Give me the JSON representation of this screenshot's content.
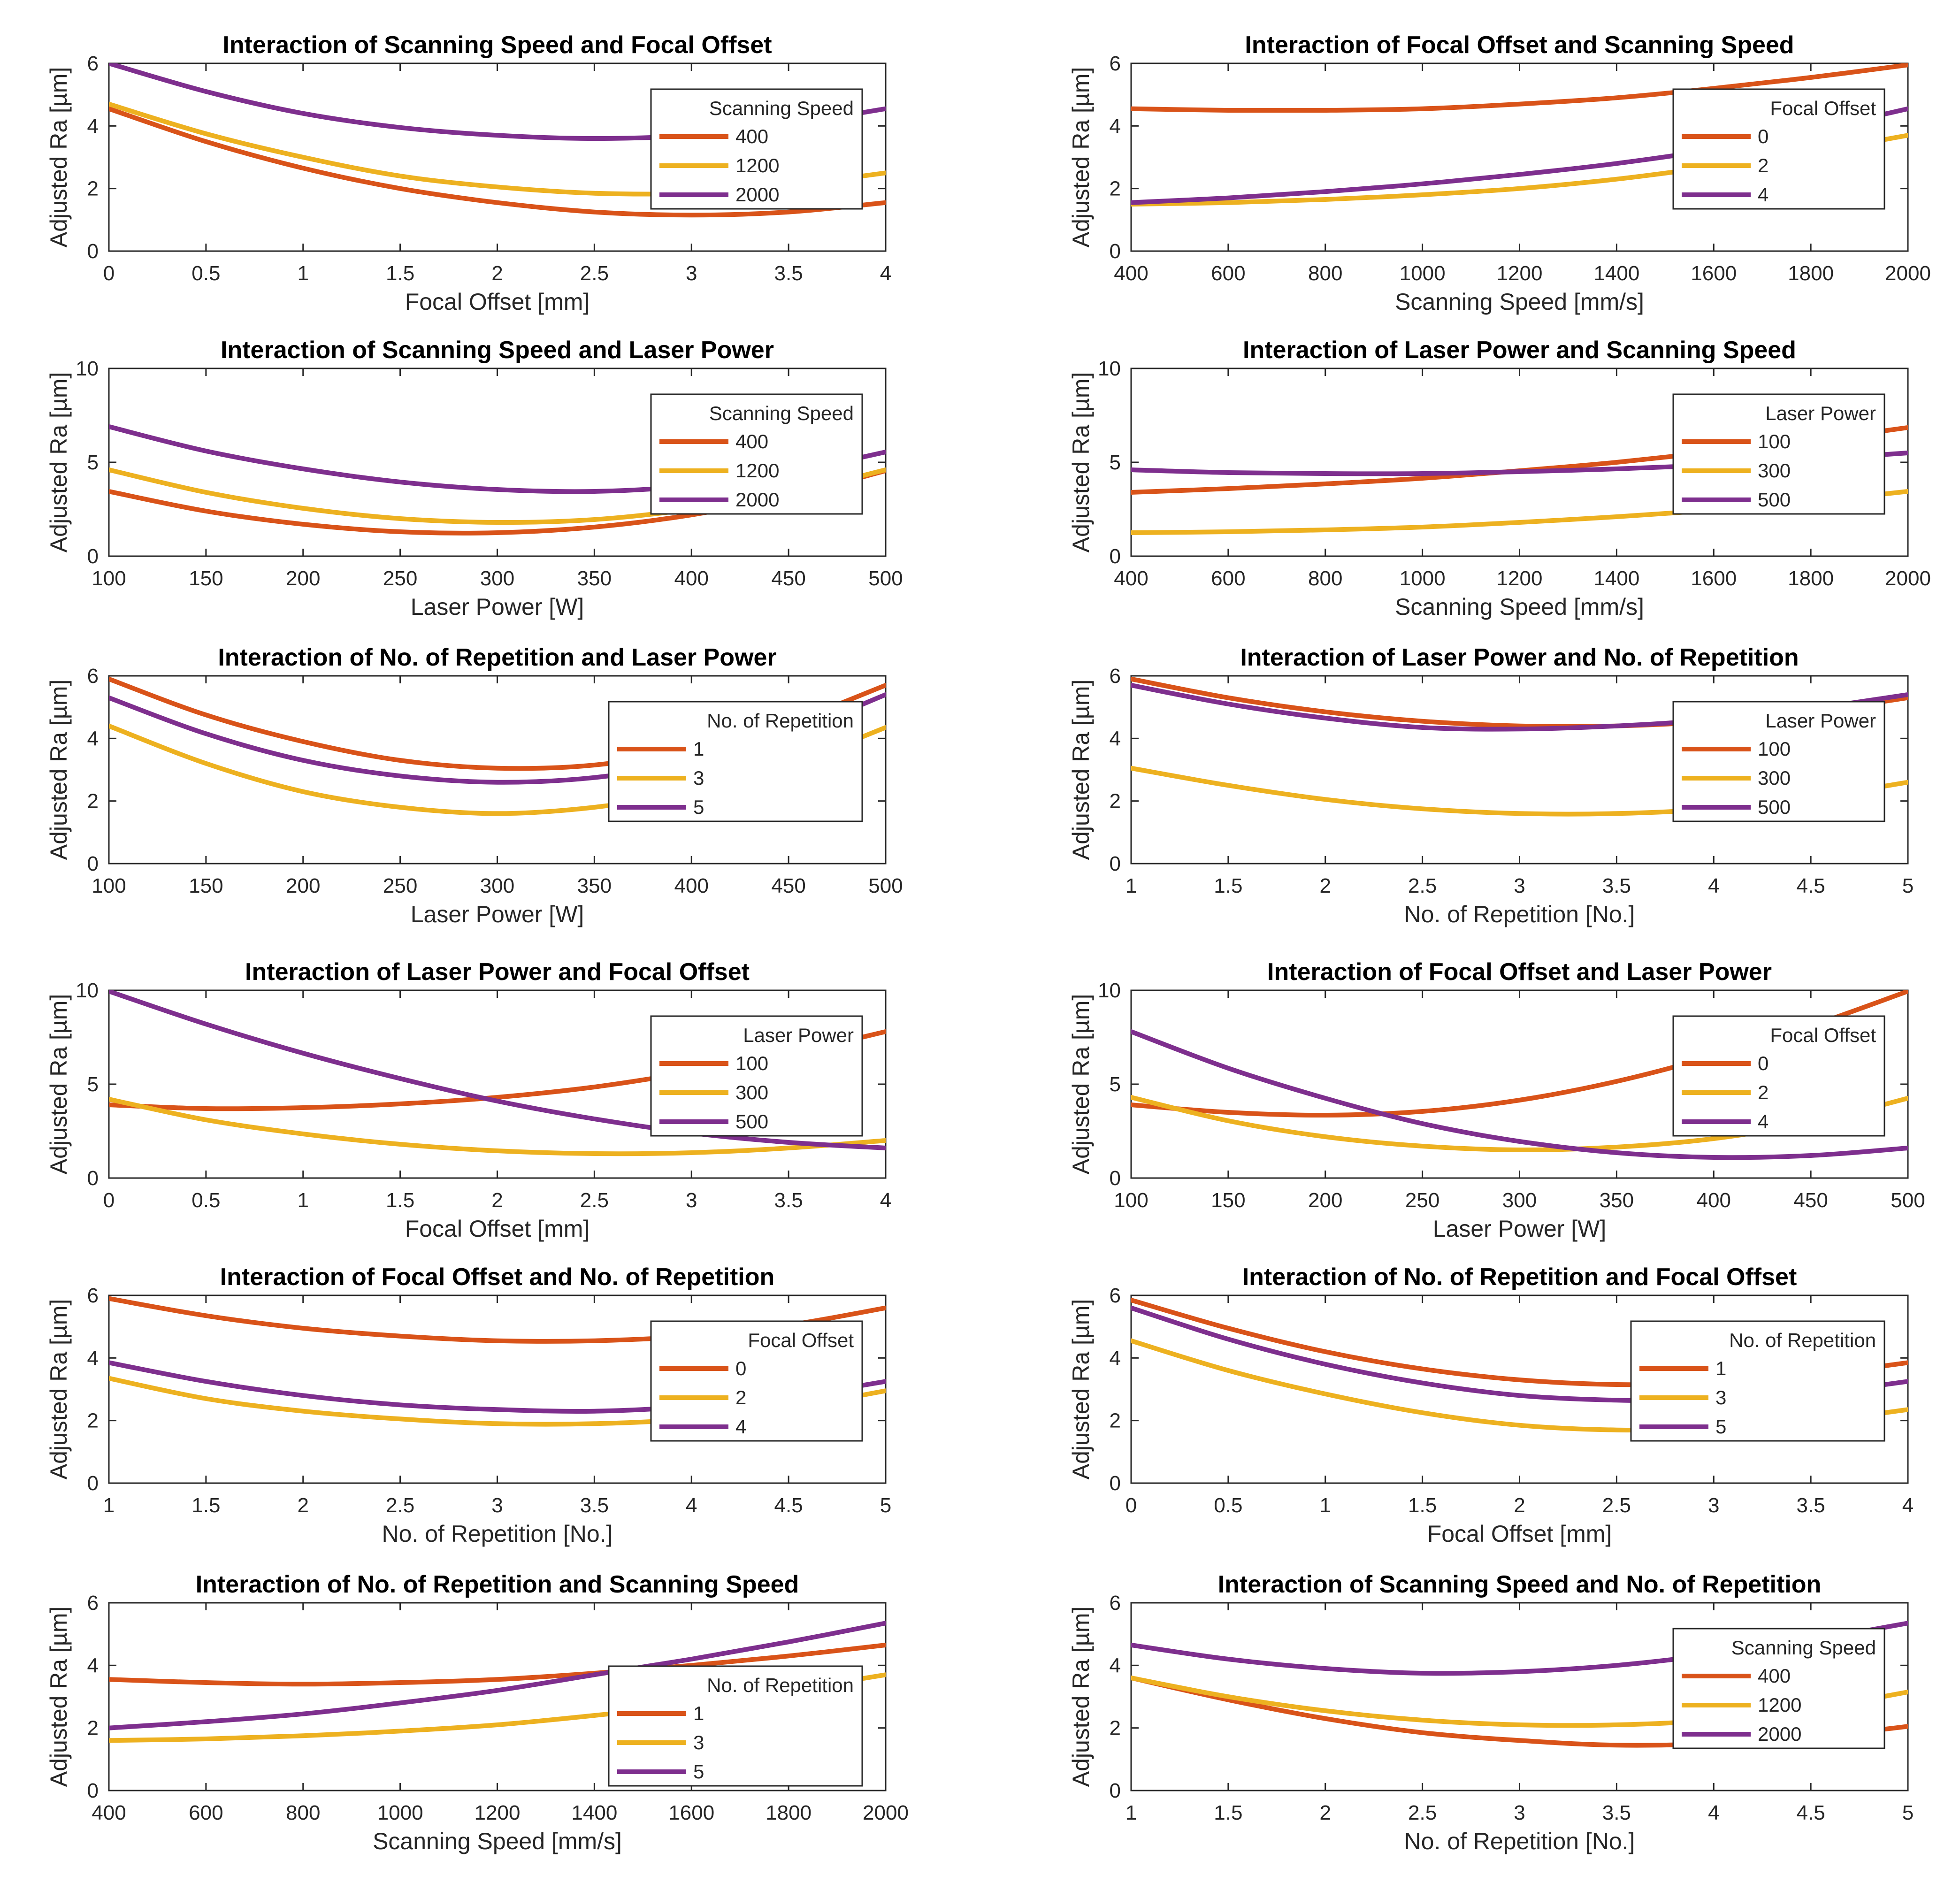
{
  "figure": {
    "ylabel": "Adjusted Ra [µm]",
    "colors": {
      "c1": "#D95319",
      "c2": "#EDB120",
      "c3": "#7E2F8E",
      "axis": "#262626",
      "frame": "#262626"
    }
  },
  "chart_data": [
    {
      "type": "line",
      "title": "Interaction of Scanning Speed and Focal Offset",
      "xlabel": "Focal Offset [mm]",
      "ylabel": "Adjusted Ra [µm]",
      "xlim": [
        0,
        4
      ],
      "ylim": [
        0,
        6
      ],
      "xticks": [
        0,
        0.5,
        1,
        1.5,
        2,
        2.5,
        3,
        3.5,
        4
      ],
      "yticks": [
        0,
        2,
        4,
        6
      ],
      "legend": {
        "title": "Scanning Speed",
        "position": "top-right"
      },
      "x": [
        0,
        0.5,
        1,
        1.5,
        2,
        2.5,
        3,
        3.5,
        4
      ],
      "series": [
        {
          "name": "400",
          "values": [
            4.55,
            3.5,
            2.65,
            2.0,
            1.55,
            1.25,
            1.15,
            1.25,
            1.55
          ]
        },
        {
          "name": "1200",
          "values": [
            4.7,
            3.75,
            3.0,
            2.4,
            2.05,
            1.85,
            1.85,
            2.1,
            2.5
          ]
        },
        {
          "name": "2000",
          "values": [
            6.0,
            5.1,
            4.4,
            3.95,
            3.7,
            3.6,
            3.7,
            4.05,
            4.55
          ]
        }
      ]
    },
    {
      "type": "line",
      "title": "Interaction of Focal Offset and Scanning Speed",
      "xlabel": "Scanning Speed [mm/s]",
      "ylabel": "Adjusted Ra [µm]",
      "xlim": [
        400,
        2000
      ],
      "ylim": [
        0,
        6
      ],
      "xticks": [
        400,
        600,
        800,
        1000,
        1200,
        1400,
        1600,
        1800,
        2000
      ],
      "yticks": [
        0,
        2,
        4,
        6
      ],
      "legend": {
        "title": "Focal Offset",
        "position": "top-right"
      },
      "x": [
        400,
        600,
        800,
        1000,
        1200,
        1400,
        1600,
        1800,
        2000
      ],
      "series": [
        {
          "name": "0",
          "values": [
            4.55,
            4.5,
            4.5,
            4.55,
            4.7,
            4.9,
            5.2,
            5.55,
            5.95
          ]
        },
        {
          "name": "2",
          "values": [
            1.5,
            1.55,
            1.65,
            1.8,
            2.0,
            2.3,
            2.7,
            3.15,
            3.7
          ]
        },
        {
          "name": "4",
          "values": [
            1.55,
            1.7,
            1.9,
            2.15,
            2.45,
            2.8,
            3.25,
            3.85,
            4.55
          ]
        }
      ]
    },
    {
      "type": "line",
      "title": "Interaction of Scanning Speed and Laser Power",
      "xlabel": "Laser Power [W]",
      "ylabel": "Adjusted Ra [µm]",
      "xlim": [
        100,
        500
      ],
      "ylim": [
        0,
        10
      ],
      "xticks": [
        100,
        150,
        200,
        250,
        300,
        350,
        400,
        450,
        500
      ],
      "yticks": [
        0,
        5,
        10
      ],
      "legend": {
        "title": "Scanning Speed",
        "position": "top-right"
      },
      "x": [
        100,
        150,
        200,
        250,
        300,
        350,
        400,
        450,
        500
      ],
      "series": [
        {
          "name": "400",
          "values": [
            3.45,
            2.4,
            1.7,
            1.3,
            1.25,
            1.55,
            2.2,
            3.2,
            4.55
          ]
        },
        {
          "name": "1200",
          "values": [
            4.6,
            3.4,
            2.55,
            2.0,
            1.8,
            1.95,
            2.5,
            3.35,
            4.6
          ]
        },
        {
          "name": "2000",
          "values": [
            6.9,
            5.6,
            4.65,
            3.95,
            3.55,
            3.45,
            3.75,
            4.45,
            5.55
          ]
        }
      ]
    },
    {
      "type": "line",
      "title": "Interaction of Laser Power and Scanning Speed",
      "xlabel": "Scanning Speed [mm/s]",
      "ylabel": "Adjusted Ra [µm]",
      "xlim": [
        400,
        2000
      ],
      "ylim": [
        0,
        10
      ],
      "xticks": [
        400,
        600,
        800,
        1000,
        1200,
        1400,
        1600,
        1800,
        2000
      ],
      "yticks": [
        0,
        5,
        10
      ],
      "legend": {
        "title": "Laser Power",
        "position": "top-right"
      },
      "x": [
        400,
        600,
        800,
        1000,
        1200,
        1400,
        1600,
        1800,
        2000
      ],
      "series": [
        {
          "name": "100",
          "values": [
            3.4,
            3.6,
            3.85,
            4.15,
            4.55,
            5.0,
            5.55,
            6.15,
            6.85
          ]
        },
        {
          "name": "300",
          "values": [
            1.25,
            1.3,
            1.4,
            1.55,
            1.8,
            2.1,
            2.45,
            2.9,
            3.45
          ]
        },
        {
          "name": "500",
          "values": [
            4.6,
            4.45,
            4.4,
            4.4,
            4.5,
            4.65,
            4.85,
            5.15,
            5.5
          ]
        }
      ]
    },
    {
      "type": "line",
      "title": "Interaction of No. of Repetition and Laser Power",
      "xlabel": "Laser Power [W]",
      "ylabel": "Adjusted Ra [µm]",
      "xlim": [
        100,
        500
      ],
      "ylim": [
        0,
        6
      ],
      "xticks": [
        100,
        150,
        200,
        250,
        300,
        350,
        400,
        450,
        500
      ],
      "yticks": [
        0,
        2,
        4,
        6
      ],
      "legend": {
        "title": "No. of Repetition",
        "position": "top-right"
      },
      "x": [
        100,
        150,
        200,
        250,
        300,
        350,
        400,
        450,
        500
      ],
      "series": [
        {
          "name": "1",
          "values": [
            5.9,
            4.75,
            3.9,
            3.3,
            3.05,
            3.15,
            3.65,
            4.5,
            5.7
          ]
        },
        {
          "name": "3",
          "values": [
            4.4,
            3.2,
            2.3,
            1.8,
            1.6,
            1.8,
            2.3,
            3.15,
            4.35
          ]
        },
        {
          "name": "5",
          "values": [
            5.3,
            4.15,
            3.3,
            2.8,
            2.6,
            2.75,
            3.25,
            4.15,
            5.4
          ]
        }
      ]
    },
    {
      "type": "line",
      "title": "Interaction of Laser Power and No. of Repetition",
      "xlabel": "No. of Repetition [No.]",
      "ylabel": "Adjusted Ra [µm]",
      "xlim": [
        1,
        5
      ],
      "ylim": [
        0,
        6
      ],
      "xticks": [
        1,
        1.5,
        2,
        2.5,
        3,
        3.5,
        4,
        4.5,
        5
      ],
      "yticks": [
        0,
        2,
        4,
        6
      ],
      "legend": {
        "title": "Laser Power",
        "position": "top-right"
      },
      "x": [
        1,
        1.5,
        2,
        2.5,
        3,
        3.5,
        4,
        4.5,
        5
      ],
      "series": [
        {
          "name": "100",
          "values": [
            5.9,
            5.3,
            4.85,
            4.55,
            4.4,
            4.4,
            4.55,
            4.85,
            5.3
          ]
        },
        {
          "name": "300",
          "values": [
            3.05,
            2.5,
            2.05,
            1.75,
            1.6,
            1.6,
            1.75,
            2.1,
            2.6
          ]
        },
        {
          "name": "500",
          "values": [
            5.7,
            5.1,
            4.65,
            4.35,
            4.3,
            4.4,
            4.6,
            4.95,
            5.4
          ]
        }
      ]
    },
    {
      "type": "line",
      "title": "Interaction of Laser Power and Focal Offset",
      "xlabel": "Focal Offset [mm]",
      "ylabel": "Adjusted Ra [µm]",
      "xlim": [
        0,
        4
      ],
      "ylim": [
        0,
        10
      ],
      "xticks": [
        0,
        0.5,
        1,
        1.5,
        2,
        2.5,
        3,
        3.5,
        4
      ],
      "yticks": [
        0,
        5,
        10
      ],
      "legend": {
        "title": "Laser Power",
        "position": "top-right"
      },
      "x": [
        0,
        0.5,
        1,
        1.5,
        2,
        2.5,
        3,
        3.5,
        4
      ],
      "series": [
        {
          "name": "100",
          "values": [
            3.9,
            3.7,
            3.75,
            3.95,
            4.3,
            4.85,
            5.65,
            6.6,
            7.8
          ]
        },
        {
          "name": "300",
          "values": [
            4.2,
            3.1,
            2.35,
            1.8,
            1.45,
            1.3,
            1.35,
            1.6,
            2.0
          ]
        },
        {
          "name": "500",
          "values": [
            9.95,
            8.2,
            6.65,
            5.3,
            4.1,
            3.15,
            2.4,
            1.9,
            1.6
          ]
        }
      ]
    },
    {
      "type": "line",
      "title": "Interaction of Focal Offset and Laser Power",
      "xlabel": "Laser Power [W]",
      "ylabel": "Adjusted Ra [µm]",
      "xlim": [
        100,
        500
      ],
      "ylim": [
        0,
        10
      ],
      "xticks": [
        100,
        150,
        200,
        250,
        300,
        350,
        400,
        450,
        500
      ],
      "yticks": [
        0,
        5,
        10
      ],
      "legend": {
        "title": "Focal Offset",
        "position": "top-right"
      },
      "x": [
        100,
        150,
        200,
        250,
        300,
        350,
        400,
        450,
        500
      ],
      "series": [
        {
          "name": "0",
          "values": [
            3.9,
            3.5,
            3.35,
            3.55,
            4.15,
            5.15,
            6.5,
            8.1,
            9.95
          ]
        },
        {
          "name": "2",
          "values": [
            4.3,
            3.05,
            2.2,
            1.7,
            1.5,
            1.65,
            2.1,
            2.95,
            4.25
          ]
        },
        {
          "name": "4",
          "values": [
            7.8,
            5.85,
            4.25,
            2.9,
            1.95,
            1.35,
            1.1,
            1.2,
            1.6
          ]
        }
      ]
    },
    {
      "type": "line",
      "title": "Interaction of Focal Offset and No. of Repetition",
      "xlabel": "No. of Repetition [No.]",
      "ylabel": "Adjusted Ra [µm]",
      "xlim": [
        1,
        5
      ],
      "ylim": [
        0,
        6
      ],
      "xticks": [
        1,
        1.5,
        2,
        2.5,
        3,
        3.5,
        4,
        4.5,
        5
      ],
      "yticks": [
        0,
        2,
        4,
        6
      ],
      "legend": {
        "title": "Focal Offset",
        "position": "top-right"
      },
      "x": [
        1,
        1.5,
        2,
        2.5,
        3,
        3.5,
        4,
        4.5,
        5
      ],
      "series": [
        {
          "name": "0",
          "values": [
            5.9,
            5.35,
            4.95,
            4.7,
            4.55,
            4.55,
            4.7,
            5.05,
            5.6
          ]
        },
        {
          "name": "2",
          "values": [
            3.35,
            2.7,
            2.3,
            2.05,
            1.9,
            1.9,
            2.05,
            2.4,
            2.95
          ]
        },
        {
          "name": "4",
          "values": [
            3.85,
            3.25,
            2.8,
            2.5,
            2.35,
            2.3,
            2.45,
            2.75,
            3.25
          ]
        }
      ]
    },
    {
      "type": "line",
      "title": "Interaction of No. of Repetition and Focal Offset",
      "xlabel": "Focal Offset [mm]",
      "ylabel": "Adjusted Ra [µm]",
      "xlim": [
        0,
        4
      ],
      "ylim": [
        0,
        6
      ],
      "xticks": [
        0,
        0.5,
        1,
        1.5,
        2,
        2.5,
        3,
        3.5,
        4
      ],
      "yticks": [
        0,
        2,
        4,
        6
      ],
      "legend": {
        "title": "No. of Repetition",
        "position": "top-right"
      },
      "x": [
        0,
        0.5,
        1,
        1.5,
        2,
        2.5,
        3,
        3.5,
        4
      ],
      "series": [
        {
          "name": "1",
          "values": [
            5.85,
            4.95,
            4.2,
            3.65,
            3.3,
            3.15,
            3.2,
            3.45,
            3.85
          ]
        },
        {
          "name": "3",
          "values": [
            4.55,
            3.6,
            2.85,
            2.25,
            1.85,
            1.7,
            1.75,
            1.95,
            2.35
          ]
        },
        {
          "name": "5",
          "values": [
            5.6,
            4.6,
            3.8,
            3.2,
            2.8,
            2.65,
            2.65,
            2.85,
            3.25
          ]
        }
      ]
    },
    {
      "type": "line",
      "title": "Interaction of No. of Repetition and Scanning Speed",
      "xlabel": "Scanning Speed  [mm/s]",
      "ylabel": "Adjusted Ra [µm]",
      "xlim": [
        400,
        2000
      ],
      "ylim": [
        0,
        6
      ],
      "xticks": [
        400,
        600,
        800,
        1000,
        1200,
        1400,
        1600,
        1800,
        2000
      ],
      "yticks": [
        0,
        2,
        4,
        6
      ],
      "legend": {
        "title": "No. of Repetition",
        "position": "bottom-right"
      },
      "x": [
        400,
        600,
        800,
        1000,
        1200,
        1400,
        1600,
        1800,
        2000
      ],
      "series": [
        {
          "name": "1",
          "values": [
            3.55,
            3.45,
            3.4,
            3.45,
            3.55,
            3.75,
            4.0,
            4.3,
            4.65
          ]
        },
        {
          "name": "3",
          "values": [
            1.6,
            1.65,
            1.75,
            1.9,
            2.1,
            2.4,
            2.75,
            3.2,
            3.7
          ]
        },
        {
          "name": "5",
          "values": [
            2.0,
            2.2,
            2.45,
            2.8,
            3.2,
            3.7,
            4.2,
            4.75,
            5.35
          ]
        }
      ]
    },
    {
      "type": "line",
      "title": "Interaction of Scanning Speed and No. of Repetition",
      "xlabel": "No. of Repetition [No.]",
      "ylabel": "Adjusted Ra [µm]",
      "xlim": [
        1,
        5
      ],
      "ylim": [
        0,
        6
      ],
      "xticks": [
        1,
        1.5,
        2,
        2.5,
        3,
        3.5,
        4,
        4.5,
        5
      ],
      "yticks": [
        0,
        2,
        4,
        6
      ],
      "legend": {
        "title": "Scanning Speed",
        "position": "top-right"
      },
      "x": [
        1,
        1.5,
        2,
        2.5,
        3,
        3.5,
        4,
        4.5,
        5
      ],
      "series": [
        {
          "name": "400",
          "values": [
            3.6,
            2.9,
            2.3,
            1.85,
            1.6,
            1.45,
            1.5,
            1.7,
            2.05
          ]
        },
        {
          "name": "1200",
          "values": [
            3.6,
            3.0,
            2.55,
            2.25,
            2.1,
            2.1,
            2.25,
            2.6,
            3.15
          ]
        },
        {
          "name": "2000",
          "values": [
            4.65,
            4.2,
            3.9,
            3.75,
            3.8,
            4.0,
            4.35,
            4.8,
            5.35
          ]
        }
      ]
    }
  ]
}
